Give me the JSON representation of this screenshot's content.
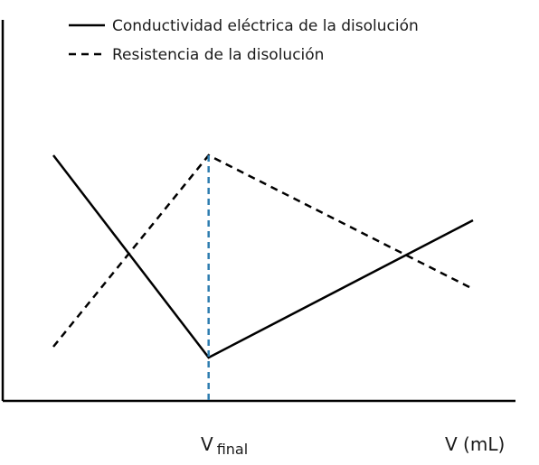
{
  "chart_data": {
    "type": "line",
    "title": "",
    "xlabel": "",
    "ylabel": "",
    "x_ticks": [
      {
        "main": "V",
        "sub": "final"
      },
      {
        "main": "V (mL)",
        "sub": ""
      }
    ],
    "grid": false,
    "legend_position": "top",
    "vline": {
      "at": "V final",
      "style": "dashed",
      "color": "#2e7db0"
    },
    "series": [
      {
        "name": "Conductividad eléctrica de la disolución",
        "style": "solid",
        "color": "#000000",
        "points": [
          {
            "x": 0.0,
            "y": 0.68
          },
          {
            "x": 0.37,
            "y": 0.12
          },
          {
            "x": 1.0,
            "y": 0.5
          }
        ]
      },
      {
        "name": "Resistencia de la disolución",
        "style": "dashed",
        "color": "#000000",
        "points": [
          {
            "x": 0.0,
            "y": 0.15
          },
          {
            "x": 0.37,
            "y": 0.68
          },
          {
            "x": 1.0,
            "y": 0.31
          }
        ]
      }
    ]
  }
}
